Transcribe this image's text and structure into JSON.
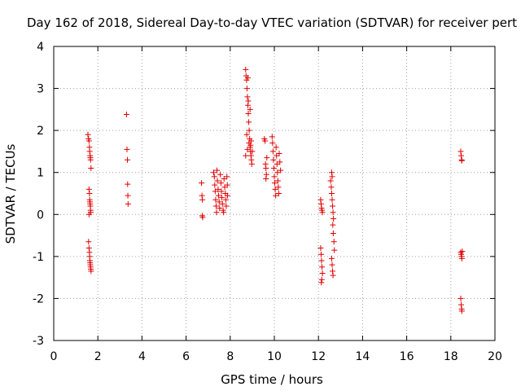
{
  "chart_data": {
    "type": "scatter",
    "title": "Day 162 of 2018, Sidereal Day-to-day VTEC variation (SDTVAR) for receiver pert",
    "xlabel": "GPS time / hours",
    "ylabel": "SDTVAR / TECUs",
    "xlim": [
      0,
      20
    ],
    "ylim": [
      -3,
      4
    ],
    "xticks": [
      "0",
      "2",
      "4",
      "6",
      "8",
      "10",
      "12",
      "14",
      "16",
      "18",
      "20"
    ],
    "yticks": [
      "-3",
      "-2",
      "-1",
      "0",
      "1",
      "2",
      "3",
      "4"
    ],
    "grid": true,
    "marker": "+",
    "marker_color": "#e00000",
    "series": [
      {
        "name": "SDTVAR",
        "points": [
          [
            1.55,
            1.9
          ],
          [
            1.58,
            1.8
          ],
          [
            1.6,
            1.75
          ],
          [
            1.62,
            1.6
          ],
          [
            1.63,
            1.5
          ],
          [
            1.65,
            1.4
          ],
          [
            1.66,
            1.35
          ],
          [
            1.67,
            1.3
          ],
          [
            1.69,
            1.1
          ],
          [
            1.6,
            0.6
          ],
          [
            1.62,
            0.5
          ],
          [
            1.63,
            0.35
          ],
          [
            1.64,
            0.3
          ],
          [
            1.65,
            0.25
          ],
          [
            1.66,
            0.2
          ],
          [
            1.67,
            0.1
          ],
          [
            1.68,
            0.05
          ],
          [
            1.6,
            0.0
          ],
          [
            1.58,
            -0.65
          ],
          [
            1.6,
            -0.8
          ],
          [
            1.62,
            -0.9
          ],
          [
            1.63,
            -1.0
          ],
          [
            1.64,
            -1.1
          ],
          [
            1.65,
            -1.15
          ],
          [
            1.66,
            -1.2
          ],
          [
            1.67,
            -1.25
          ],
          [
            1.68,
            -1.3
          ],
          [
            1.69,
            -1.35
          ],
          [
            3.3,
            2.38
          ],
          [
            3.32,
            1.55
          ],
          [
            3.34,
            1.3
          ],
          [
            3.35,
            0.72
          ],
          [
            3.36,
            0.45
          ],
          [
            3.37,
            0.25
          ],
          [
            6.7,
            0.75
          ],
          [
            6.72,
            0.45
          ],
          [
            6.74,
            0.35
          ],
          [
            6.73,
            -0.03
          ],
          [
            6.75,
            -0.07
          ],
          [
            7.25,
            1.0
          ],
          [
            7.28,
            0.9
          ],
          [
            7.3,
            0.7
          ],
          [
            7.32,
            0.55
          ],
          [
            7.34,
            0.35
          ],
          [
            7.36,
            0.2
          ],
          [
            7.38,
            0.05
          ],
          [
            7.4,
            1.05
          ],
          [
            7.42,
            0.8
          ],
          [
            7.45,
            0.6
          ],
          [
            7.47,
            0.45
          ],
          [
            7.5,
            0.3
          ],
          [
            7.52,
            0.15
          ],
          [
            7.55,
            0.95
          ],
          [
            7.58,
            0.75
          ],
          [
            7.6,
            0.55
          ],
          [
            7.62,
            0.4
          ],
          [
            7.65,
            0.25
          ],
          [
            7.68,
            0.1
          ],
          [
            7.7,
            0.05
          ],
          [
            7.72,
            0.85
          ],
          [
            7.75,
            0.65
          ],
          [
            7.78,
            0.5
          ],
          [
            7.8,
            0.35
          ],
          [
            7.82,
            0.2
          ],
          [
            7.85,
            0.9
          ],
          [
            7.87,
            0.7
          ],
          [
            7.88,
            0.45
          ],
          [
            8.7,
            3.45
          ],
          [
            8.72,
            3.3
          ],
          [
            8.74,
            3.2
          ],
          [
            8.76,
            3.0
          ],
          [
            8.78,
            2.8
          ],
          [
            8.8,
            2.6
          ],
          [
            8.82,
            2.4
          ],
          [
            8.84,
            2.2
          ],
          [
            8.86,
            2.0
          ],
          [
            8.88,
            1.8
          ],
          [
            8.9,
            1.6
          ],
          [
            8.92,
            1.5
          ],
          [
            8.94,
            1.4
          ],
          [
            8.96,
            1.3
          ],
          [
            8.98,
            1.2
          ],
          [
            8.8,
            3.25
          ],
          [
            8.82,
            2.7
          ],
          [
            8.75,
            1.9
          ],
          [
            8.85,
            1.7
          ],
          [
            8.9,
            2.5
          ],
          [
            8.95,
            1.75
          ],
          [
            9.0,
            1.5
          ],
          [
            8.7,
            1.4
          ],
          [
            8.78,
            1.55
          ],
          [
            8.92,
            1.65
          ],
          [
            9.55,
            1.8
          ],
          [
            9.58,
            1.75
          ],
          [
            9.6,
            1.2
          ],
          [
            9.62,
            1.1
          ],
          [
            9.64,
            0.95
          ],
          [
            9.66,
            1.35
          ],
          [
            9.62,
            0.85
          ],
          [
            9.9,
            1.85
          ],
          [
            9.92,
            1.7
          ],
          [
            9.94,
            1.5
          ],
          [
            9.96,
            1.3
          ],
          [
            9.98,
            1.1
          ],
          [
            10.0,
            0.9
          ],
          [
            10.02,
            0.75
          ],
          [
            10.04,
            0.6
          ],
          [
            10.06,
            0.45
          ],
          [
            10.08,
            1.6
          ],
          [
            10.1,
            1.4
          ],
          [
            10.12,
            1.2
          ],
          [
            10.14,
            1.0
          ],
          [
            10.16,
            0.8
          ],
          [
            10.18,
            0.65
          ],
          [
            10.2,
            0.5
          ],
          [
            10.22,
            1.45
          ],
          [
            10.25,
            1.25
          ],
          [
            10.28,
            1.05
          ],
          [
            12.1,
            0.35
          ],
          [
            12.12,
            0.25
          ],
          [
            12.14,
            0.15
          ],
          [
            12.16,
            0.1
          ],
          [
            12.18,
            0.05
          ],
          [
            12.1,
            -0.8
          ],
          [
            12.12,
            -0.95
          ],
          [
            12.14,
            -1.1
          ],
          [
            12.16,
            -1.25
          ],
          [
            12.18,
            -1.4
          ],
          [
            12.15,
            -1.55
          ],
          [
            12.13,
            -1.62
          ],
          [
            12.55,
            0.8
          ],
          [
            12.58,
            0.65
          ],
          [
            12.6,
            0.5
          ],
          [
            12.62,
            0.35
          ],
          [
            12.64,
            0.2
          ],
          [
            12.66,
            0.05
          ],
          [
            12.68,
            -0.1
          ],
          [
            12.6,
            1.0
          ],
          [
            12.62,
            0.9
          ],
          [
            12.65,
            -0.25
          ],
          [
            12.67,
            -0.45
          ],
          [
            12.7,
            -0.65
          ],
          [
            12.72,
            -0.85
          ],
          [
            12.6,
            -1.05
          ],
          [
            12.62,
            -1.2
          ],
          [
            12.64,
            -1.35
          ],
          [
            12.66,
            -1.45
          ],
          [
            18.45,
            1.5
          ],
          [
            18.47,
            1.4
          ],
          [
            18.49,
            1.3
          ],
          [
            18.5,
            1.28
          ],
          [
            18.45,
            -0.9
          ],
          [
            18.47,
            -0.95
          ],
          [
            18.49,
            -1.0
          ],
          [
            18.5,
            -1.05
          ],
          [
            18.52,
            -0.88
          ],
          [
            18.45,
            -2.0
          ],
          [
            18.47,
            -2.15
          ],
          [
            18.49,
            -2.25
          ],
          [
            18.5,
            -2.3
          ]
        ]
      }
    ]
  }
}
